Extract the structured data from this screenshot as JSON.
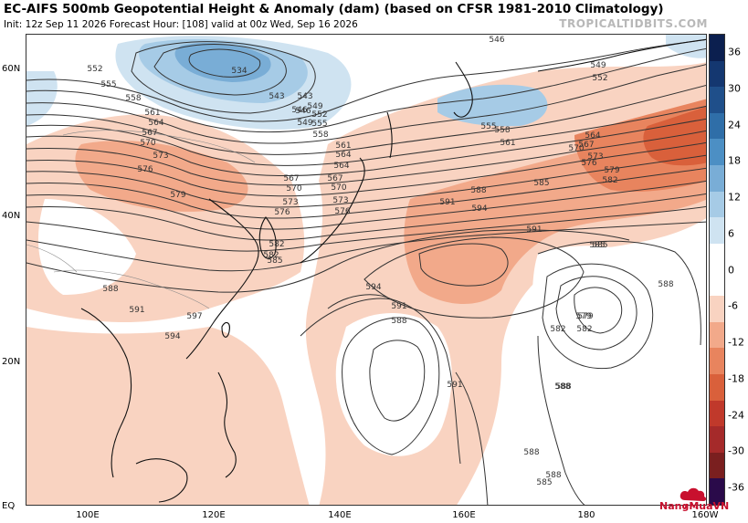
{
  "title": "EC-AIFS 500mb Geopotential Height & Anomaly (dam) (based on CFSR 1981-2010 Climatology)",
  "subtitle": "Init: 12z Sep 11 2026   Forecast Hour: [108]   valid at 00z Wed, Sep 16 2026",
  "watermark": "TROPICALTIDBITS.COM",
  "logo_text": "NangMuaVN",
  "latitude_labels": [
    "60N",
    "40N",
    "20N",
    "EQ"
  ],
  "longitude_labels": [
    "100E",
    "120E",
    "140E",
    "160E",
    "180",
    "160W"
  ],
  "colorbar": {
    "ticks": [
      "36",
      "30",
      "24",
      "18",
      "12",
      "6",
      "0",
      "-6",
      "-12",
      "-18",
      "-24",
      "-30",
      "-36"
    ],
    "colors": [
      "#2a0a4a",
      "#7a1f1f",
      "#a52a2a",
      "#c0392b",
      "#d9603b",
      "#e8845e",
      "#f2a98a",
      "#f9d3c1",
      "#ffffff",
      "#ffffff",
      "#cfe3f1",
      "#a6cbe6",
      "#79add6",
      "#4c8fc4",
      "#2f6ea8",
      "#1f4f8a",
      "#143770",
      "#0b1f4f"
    ]
  },
  "contour_labels": [
    "534",
    "543",
    "546",
    "549",
    "552",
    "555",
    "558",
    "561",
    "564",
    "567",
    "570",
    "573",
    "576",
    "579",
    "582",
    "585",
    "588",
    "591",
    "594",
    "597"
  ],
  "map_labels": [
    {
      "text": "534"
    },
    {
      "text": "543"
    },
    {
      "text": "546"
    },
    {
      "text": "549"
    },
    {
      "text": "552"
    },
    {
      "text": "555"
    },
    {
      "text": "558"
    },
    {
      "text": "561"
    },
    {
      "text": "564"
    },
    {
      "text": "567"
    },
    {
      "text": "570"
    },
    {
      "text": "573"
    },
    {
      "text": "576"
    },
    {
      "text": "579"
    },
    {
      "text": "582"
    },
    {
      "text": "585"
    },
    {
      "text": "588"
    },
    {
      "text": "591"
    },
    {
      "text": "594"
    },
    {
      "text": "597"
    },
    {
      "text": "546"
    },
    {
      "text": "549"
    },
    {
      "text": "552"
    },
    {
      "text": "555"
    },
    {
      "text": "558"
    },
    {
      "text": "561"
    },
    {
      "text": "564"
    },
    {
      "text": "567"
    },
    {
      "text": "570"
    },
    {
      "text": "573"
    },
    {
      "text": "576"
    },
    {
      "text": "579"
    },
    {
      "text": "582"
    },
    {
      "text": "585"
    },
    {
      "text": "588"
    },
    {
      "text": "591"
    },
    {
      "text": "594"
    },
    {
      "text": "579"
    },
    {
      "text": "582"
    },
    {
      "text": "585"
    },
    {
      "text": "588"
    },
    {
      "text": "588"
    },
    {
      "text": "591"
    },
    {
      "text": "588"
    },
    {
      "text": "594"
    },
    {
      "text": "591"
    },
    {
      "text": "588"
    },
    {
      "text": "585"
    },
    {
      "text": "582"
    },
    {
      "text": "576"
    },
    {
      "text": "573"
    },
    {
      "text": "570"
    },
    {
      "text": "567"
    },
    {
      "text": "564"
    },
    {
      "text": "561"
    },
    {
      "text": "558"
    },
    {
      "text": "555"
    },
    {
      "text": "552"
    },
    {
      "text": "549"
    },
    {
      "text": "546"
    },
    {
      "text": "543"
    },
    {
      "text": "591"
    },
    {
      "text": "588"
    },
    {
      "text": "588"
    },
    {
      "text": "585"
    },
    {
      "text": "582"
    },
    {
      "text": "579"
    },
    {
      "text": "576"
    },
    {
      "text": "573"
    },
    {
      "text": "570"
    },
    {
      "text": "567"
    },
    {
      "text": "564"
    }
  ]
}
